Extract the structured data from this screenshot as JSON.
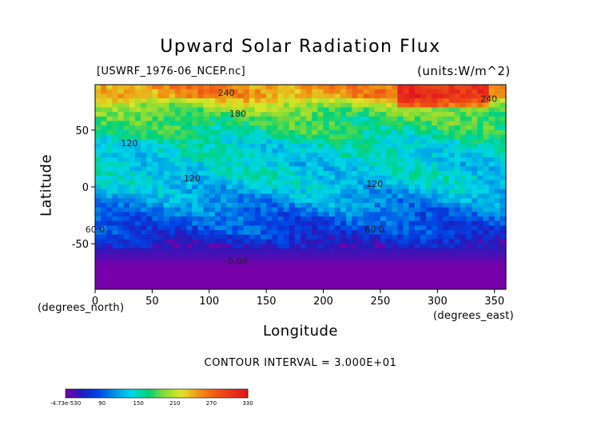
{
  "chart_data": {
    "type": "heatmap",
    "title": "Upward Solar Radiation Flux",
    "file_label": "[USWRF_1976-06_NCEP.nc]",
    "units_label": "(units:W/m^2)",
    "xlabel": "Longitude",
    "ylabel": "Latitude",
    "x_unit_note": "(degrees_east)",
    "y_unit_note": "(degrees_north)",
    "xlim": [
      0,
      360
    ],
    "ylim": [
      -90,
      90
    ],
    "x_ticks": [
      0,
      50,
      100,
      150,
      200,
      250,
      300,
      350
    ],
    "y_ticks": [
      50,
      0,
      -50
    ],
    "contour_interval_text": "CONTOUR INTERVAL = 3.000E+01",
    "contour_labels": [
      "240",
      "180",
      "120",
      "120",
      "120",
      "60.0",
      "60.0",
      "0.00",
      "240"
    ],
    "colorbar": {
      "tick_labels": [
        "-4.73e-530",
        "90",
        "150",
        "210",
        "270",
        "330"
      ],
      "min": 0,
      "max": 330
    },
    "zonal_profile": [
      {
        "lat": 90,
        "value": 245
      },
      {
        "lat": 80,
        "value": 240
      },
      {
        "lat": 70,
        "value": 180
      },
      {
        "lat": 60,
        "value": 160
      },
      {
        "lat": 50,
        "value": 150
      },
      {
        "lat": 40,
        "value": 130
      },
      {
        "lat": 30,
        "value": 125
      },
      {
        "lat": 20,
        "value": 115
      },
      {
        "lat": 10,
        "value": 120
      },
      {
        "lat": 0,
        "value": 110
      },
      {
        "lat": -10,
        "value": 95
      },
      {
        "lat": -20,
        "value": 80
      },
      {
        "lat": -30,
        "value": 65
      },
      {
        "lat": -40,
        "value": 55
      },
      {
        "lat": -50,
        "value": 30
      },
      {
        "lat": -60,
        "value": 15
      },
      {
        "lat": -70,
        "value": 0
      },
      {
        "lat": -80,
        "value": 0
      },
      {
        "lat": -90,
        "value": 0
      }
    ]
  }
}
